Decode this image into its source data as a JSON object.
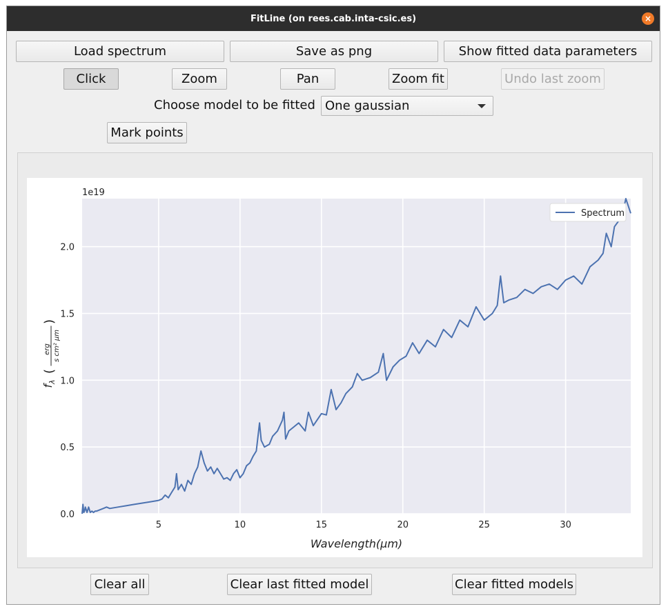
{
  "window": {
    "title": "FitLine (on rees.cab.inta-csic.es)",
    "close_glyph": "×"
  },
  "toolbar": {
    "load_label": "Load spectrum",
    "save_label": "Save as png",
    "show_params_label": "Show fitted data parameters"
  },
  "modes": {
    "click_label": "Click",
    "zoom_label": "Zoom",
    "pan_label": "Pan",
    "zoom_fit_label": "Zoom fit",
    "undo_zoom_label": "Undo last zoom"
  },
  "model": {
    "prompt": "Choose model to be fitted",
    "selected": "One gaussian"
  },
  "mark_points_label": "Mark points",
  "bottom": {
    "clear_all_label": "Clear all",
    "clear_last_label": "Clear last fitted model",
    "clear_models_label": "Clear fitted models"
  },
  "colors": {
    "series": "#4c72b0",
    "axes_bg": "#eaeaf2",
    "grid": "#ffffff",
    "close": "#f07a28"
  },
  "chart_data": {
    "type": "line",
    "xlabel": "Wavelength(μm)",
    "ylabel_main": "f",
    "ylabel_sub": "λ",
    "ylabel_num": "erg",
    "ylabel_den": "s cm² μm",
    "offset_text": "1e19",
    "legend_position": "top-right",
    "grid": true,
    "xlim": [
      0.3,
      34.0
    ],
    "ylim": [
      0.0,
      2.36
    ],
    "xticks": [
      5,
      10,
      15,
      20,
      25,
      30
    ],
    "xtick_labels": [
      "5",
      "10",
      "15",
      "20",
      "25",
      "30"
    ],
    "yticks": [
      0.0,
      0.5,
      1.0,
      1.5,
      2.0
    ],
    "ytick_labels": [
      "0.0",
      "0.5",
      "1.0",
      "1.5",
      "2.0"
    ],
    "series": [
      {
        "name": "Spectrum",
        "x": [
          0.3,
          0.35,
          0.4,
          0.45,
          0.5,
          0.6,
          0.7,
          0.8,
          0.9,
          1.0,
          1.1,
          1.2,
          1.4,
          1.6,
          1.8,
          2.0,
          2.5,
          3.0,
          3.5,
          4.0,
          4.5,
          5.0,
          5.2,
          5.4,
          5.6,
          5.8,
          6.0,
          6.1,
          6.2,
          6.4,
          6.6,
          6.8,
          7.0,
          7.2,
          7.4,
          7.6,
          7.8,
          8.0,
          8.2,
          8.4,
          8.6,
          8.8,
          9.0,
          9.2,
          9.4,
          9.6,
          9.8,
          10.0,
          10.2,
          10.4,
          10.6,
          10.8,
          11.0,
          11.2,
          11.3,
          11.5,
          11.8,
          12.0,
          12.3,
          12.6,
          12.7,
          12.8,
          13.0,
          13.3,
          13.6,
          14.0,
          14.2,
          14.5,
          15.0,
          15.3,
          15.6,
          15.9,
          16.2,
          16.5,
          16.9,
          17.2,
          17.5,
          18.0,
          18.5,
          18.8,
          19.0,
          19.4,
          19.8,
          20.2,
          20.6,
          21.0,
          21.5,
          22.0,
          22.5,
          23.0,
          23.5,
          24.0,
          24.5,
          25.0,
          25.5,
          25.8,
          26.0,
          26.2,
          26.5,
          27.0,
          27.5,
          28.0,
          28.5,
          29.0,
          29.5,
          30.0,
          30.5,
          31.0,
          31.5,
          32.0,
          32.3,
          32.5,
          32.8,
          33.0,
          33.3,
          33.5,
          33.7,
          34.0
        ],
        "values": [
          0.0,
          0.07,
          0.01,
          0.02,
          0.05,
          0.01,
          0.05,
          0.01,
          0.02,
          0.01,
          0.02,
          0.02,
          0.03,
          0.04,
          0.05,
          0.04,
          0.05,
          0.06,
          0.07,
          0.08,
          0.09,
          0.1,
          0.11,
          0.14,
          0.12,
          0.16,
          0.2,
          0.3,
          0.18,
          0.22,
          0.17,
          0.25,
          0.22,
          0.3,
          0.35,
          0.47,
          0.38,
          0.32,
          0.35,
          0.3,
          0.34,
          0.3,
          0.26,
          0.27,
          0.25,
          0.3,
          0.33,
          0.27,
          0.3,
          0.36,
          0.38,
          0.43,
          0.47,
          0.68,
          0.55,
          0.5,
          0.52,
          0.58,
          0.62,
          0.7,
          0.76,
          0.56,
          0.62,
          0.65,
          0.68,
          0.62,
          0.76,
          0.66,
          0.75,
          0.74,
          0.93,
          0.78,
          0.83,
          0.9,
          0.95,
          1.05,
          1.0,
          1.02,
          1.06,
          1.2,
          1.0,
          1.1,
          1.15,
          1.18,
          1.28,
          1.2,
          1.3,
          1.25,
          1.38,
          1.32,
          1.45,
          1.4,
          1.55,
          1.45,
          1.5,
          1.56,
          1.78,
          1.58,
          1.6,
          1.62,
          1.68,
          1.65,
          1.7,
          1.72,
          1.68,
          1.75,
          1.78,
          1.72,
          1.85,
          1.9,
          1.95,
          2.1,
          2.0,
          2.15,
          2.2,
          2.25,
          2.36,
          2.25
        ]
      }
    ]
  }
}
